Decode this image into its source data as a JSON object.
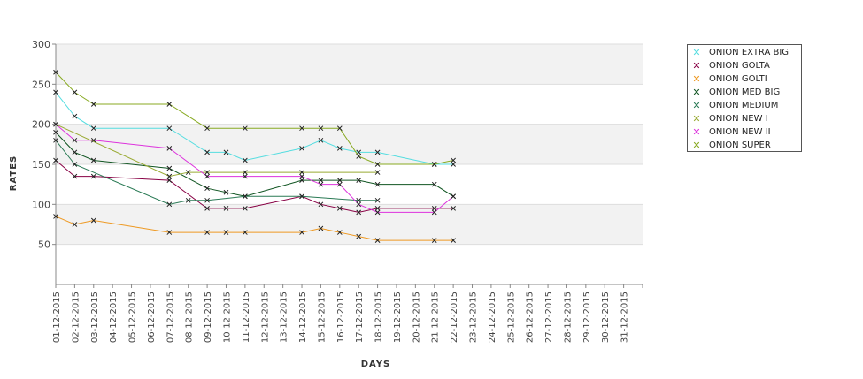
{
  "chart_data": {
    "type": "line",
    "xlabel": "DAYS",
    "ylabel": "RATES",
    "ylim": [
      0,
      300
    ],
    "yticks": [
      50,
      100,
      150,
      200,
      250,
      300
    ],
    "grid": "horizontal alternating bands",
    "legend_position": "top-right",
    "categories": [
      "01-12-2015",
      "02-12-2015",
      "03-12-2015",
      "04-12-2015",
      "05-12-2015",
      "06-12-2015",
      "07-12-2015",
      "08-12-2015",
      "09-12-2015",
      "10-12-2015",
      "11-12-2015",
      "12-12-2015",
      "13-12-2015",
      "14-12-2015",
      "15-12-2015",
      "16-12-2015",
      "17-12-2015",
      "18-12-2015",
      "19-12-2015",
      "20-12-2015",
      "21-12-2015",
      "22-12-2015",
      "23-12-2015",
      "24-12-2015",
      "25-12-2015",
      "26-12-2015",
      "27-12-2015",
      "28-12-2015",
      "29-12-2015",
      "30-12-2015",
      "31-12-2015"
    ],
    "series": [
      {
        "name": "ONION EXTRA BIG",
        "color": "#55dde0",
        "points": [
          [
            0,
            240
          ],
          [
            1,
            210
          ],
          [
            2,
            195
          ],
          [
            6,
            195
          ],
          [
            8,
            165
          ],
          [
            9,
            165
          ],
          [
            10,
            155
          ],
          [
            13,
            170
          ],
          [
            14,
            180
          ],
          [
            15,
            170
          ],
          [
            16,
            165
          ],
          [
            17,
            165
          ],
          [
            20,
            150
          ],
          [
            21,
            150
          ]
        ]
      },
      {
        "name": "ONION GOLTA",
        "color": "#880044",
        "points": [
          [
            0,
            155
          ],
          [
            1,
            135
          ],
          [
            2,
            135
          ],
          [
            6,
            130
          ],
          [
            8,
            95
          ],
          [
            9,
            95
          ],
          [
            10,
            95
          ],
          [
            13,
            110
          ],
          [
            14,
            100
          ],
          [
            15,
            95
          ],
          [
            16,
            90
          ],
          [
            17,
            95
          ],
          [
            20,
            95
          ],
          [
            21,
            95
          ]
        ]
      },
      {
        "name": "ONION GOLTI",
        "color": "#ee9922",
        "points": [
          [
            0,
            85
          ],
          [
            1,
            75
          ],
          [
            2,
            80
          ],
          [
            6,
            65
          ],
          [
            8,
            65
          ],
          [
            9,
            65
          ],
          [
            10,
            65
          ],
          [
            13,
            65
          ],
          [
            14,
            70
          ],
          [
            15,
            65
          ],
          [
            16,
            60
          ],
          [
            17,
            55
          ],
          [
            20,
            55
          ],
          [
            21,
            55
          ]
        ]
      },
      {
        "name": "ONION MED BIG",
        "color": "#115522",
        "points": [
          [
            0,
            190
          ],
          [
            1,
            165
          ],
          [
            2,
            155
          ],
          [
            6,
            145
          ],
          [
            8,
            120
          ],
          [
            9,
            115
          ],
          [
            10,
            110
          ],
          [
            13,
            130
          ],
          [
            14,
            130
          ],
          [
            15,
            130
          ],
          [
            16,
            130
          ],
          [
            17,
            125
          ],
          [
            20,
            125
          ],
          [
            21,
            110
          ]
        ]
      },
      {
        "name": "ONION MEDIUM",
        "color": "#2a7a55",
        "points": [
          [
            0,
            180
          ],
          [
            1,
            150
          ],
          [
            6,
            100
          ],
          [
            7,
            105
          ],
          [
            8,
            105
          ],
          [
            10,
            110
          ],
          [
            13,
            110
          ],
          [
            16,
            105
          ],
          [
            17,
            105
          ]
        ]
      },
      {
        "name": "ONION NEW I",
        "color": "#99aa33",
        "points": [
          [
            0,
            200
          ],
          [
            6,
            135
          ],
          [
            7,
            140
          ],
          [
            8,
            140
          ],
          [
            10,
            140
          ],
          [
            13,
            140
          ],
          [
            17,
            140
          ]
        ]
      },
      {
        "name": "ONION NEW II",
        "color": "#dd33dd",
        "points": [
          [
            0,
            200
          ],
          [
            1,
            180
          ],
          [
            2,
            180
          ],
          [
            6,
            170
          ],
          [
            8,
            135
          ],
          [
            10,
            135
          ],
          [
            13,
            135
          ],
          [
            14,
            125
          ],
          [
            15,
            125
          ],
          [
            16,
            100
          ],
          [
            17,
            90
          ],
          [
            20,
            90
          ],
          [
            21,
            110
          ]
        ]
      },
      {
        "name": "ONION SUPER",
        "color": "#88aa22",
        "points": [
          [
            0,
            265
          ],
          [
            1,
            240
          ],
          [
            2,
            225
          ],
          [
            6,
            225
          ],
          [
            8,
            195
          ],
          [
            10,
            195
          ],
          [
            13,
            195
          ],
          [
            14,
            195
          ],
          [
            15,
            195
          ],
          [
            16,
            160
          ],
          [
            17,
            150
          ],
          [
            20,
            150
          ],
          [
            21,
            155
          ]
        ]
      }
    ]
  }
}
